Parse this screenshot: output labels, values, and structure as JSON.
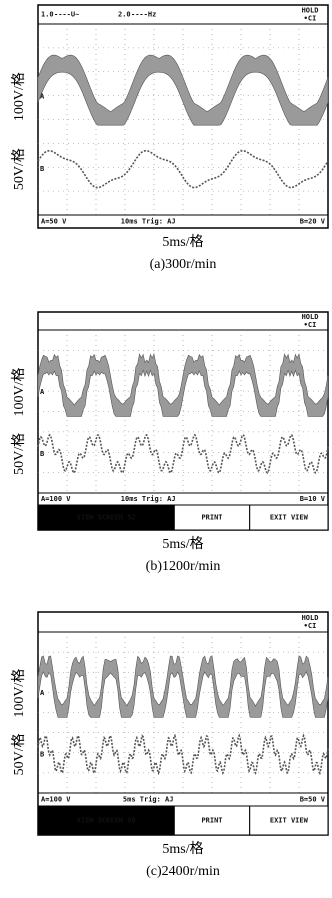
{
  "panels": [
    {
      "top_bar": [
        "1.0",
        "----U~",
        "2.0",
        "----Hz"
      ],
      "hold": "HOLD",
      "hold_sub": "•CI",
      "channel_a_scale": "100V/格",
      "channel_b_scale": "50V/格",
      "marker_a": "A",
      "marker_b": "B",
      "status": [
        "A=50 V",
        "10ms Trig: AJ",
        "B=20 V"
      ],
      "time_label": "5ms/格",
      "caption": "(a)300r/min"
    },
    {
      "hold": "HOLD",
      "hold_sub": "•CI",
      "channel_a_scale": "100V/格",
      "channel_b_scale": "50V/格",
      "marker_a": "A",
      "marker_b": "B",
      "status": [
        "A=100 V",
        "10ms Trig: AJ",
        "B=10 V"
      ],
      "softkeys": [
        "VIEW SCREEN 52",
        "PRINT",
        "EXIT VIEW"
      ],
      "time_label": "5ms/格",
      "caption": "(b)1200r/min"
    },
    {
      "hold": "HOLD",
      "hold_sub": "•CI",
      "channel_a_scale": "100V/格",
      "channel_b_scale": "50V/格",
      "marker_a": "A",
      "marker_b": "B",
      "status": [
        "A=100 V",
        "5ms Trig: AJ",
        "B=50 V"
      ],
      "softkeys": [
        "VIEW SCREEN 50",
        "PRINT",
        "EXIT VIEW"
      ],
      "time_label": "5ms/格",
      "caption": "(c)2400r/min"
    }
  ]
}
